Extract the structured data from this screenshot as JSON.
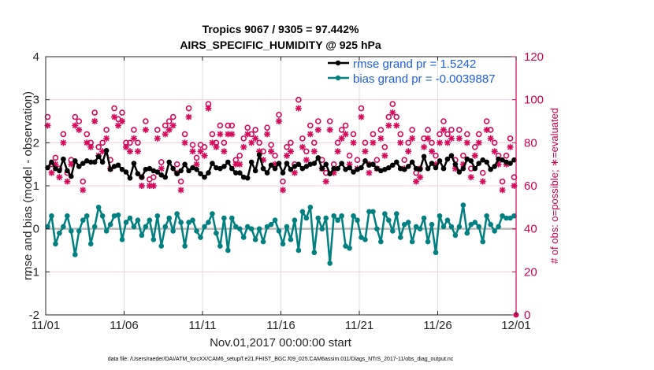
{
  "chart_data": {
    "type": "line",
    "title": [
      "Tropics 9067 / 9305 = 97.442%",
      "AIRS_SPECIFIC_HUMIDITY @ 925 hPa"
    ],
    "xlabel": "Nov.01,2017 00:00:00 start",
    "ylabel": "rmse and bias (model - observation)",
    "y2label": "# of obs: o=possible; ∗=evaluated",
    "footnote": "data file: /Users/raeder/DAI/ATM_forcXX/CAM6_setup/f.e21.FHIST_BGC.f09_025.CAM6assim.011/Diags_NTrS_2017-11/obs_diag_output.nc",
    "xlim": [
      0,
      30
    ],
    "ylim": [
      -2,
      4
    ],
    "y2lim": [
      0,
      120
    ],
    "xticks": [
      0,
      5,
      10,
      15,
      20,
      25,
      30
    ],
    "xtick_labels": [
      "11/01",
      "11/06",
      "11/11",
      "11/16",
      "11/21",
      "11/26",
      "12/01"
    ],
    "yticks": [
      -2,
      -1,
      0,
      1,
      2,
      3,
      4
    ],
    "ytick_labels": [
      "-2",
      "-1",
      "0",
      "1",
      "2",
      "3",
      "4"
    ],
    "y2ticks": [
      0,
      20,
      40,
      60,
      80,
      100,
      120
    ],
    "y2tick_labels": [
      "0",
      "20",
      "40",
      "60",
      "80",
      "100",
      "120"
    ],
    "grid": true,
    "legend_position": "top-right",
    "colors": {
      "rmse": "#000000",
      "bias": "#008080",
      "obs": "#d6095a",
      "zero_line": "#b8b8b8",
      "grid": "#f2cfe0",
      "legend_text": "#1f5fe0"
    },
    "samples_per_day": 4,
    "series": [
      {
        "name": "rmse grand pr = 1.5242",
        "axis": "left",
        "values": [
          1.42,
          1.55,
          1.4,
          1.35,
          1.62,
          1.35,
          1.22,
          1.58,
          1.45,
          1.52,
          1.58,
          1.55,
          1.55,
          1.68,
          1.55,
          1.82,
          1.38,
          1.45,
          1.48,
          1.38,
          1.32,
          1.18,
          1.52,
          1.28,
          1.2,
          1.38,
          1.4,
          1.35,
          1.32,
          1.25,
          1.2,
          1.55,
          1.4,
          1.28,
          1.35,
          1.5,
          1.35,
          1.42,
          1.38,
          1.28,
          1.2,
          1.3,
          1.52,
          1.42,
          1.4,
          1.45,
          1.55,
          1.4,
          1.3,
          1.3,
          1.2,
          1.18,
          1.55,
          1.35,
          1.72,
          1.4,
          1.3,
          1.48,
          1.4,
          1.52,
          1.3,
          1.52,
          1.38,
          1.45,
          1.5,
          1.4,
          1.45,
          1.5,
          1.52,
          1.65,
          1.4,
          1.5,
          1.28,
          1.4,
          1.4,
          1.52,
          1.38,
          1.42,
          1.32,
          1.38,
          1.42,
          1.58,
          1.48,
          1.5,
          1.4,
          1.35,
          1.38,
          1.42,
          1.48,
          1.55,
          1.4,
          1.38,
          1.45,
          1.55,
          1.4,
          1.38,
          1.68,
          1.4,
          1.52,
          1.42,
          1.58,
          1.4,
          1.62,
          1.7,
          1.5,
          1.32,
          1.4,
          1.62,
          1.58,
          1.4,
          1.52,
          1.6,
          1.55,
          1.38,
          1.45,
          1.62,
          1.6,
          1.55,
          1.52,
          1.6
        ]
      },
      {
        "name": "bias grand pr = -0.0039887",
        "axis": "left",
        "values": [
          0.05,
          0.3,
          -0.35,
          -0.1,
          0.05,
          0.3,
          -0.05,
          -0.6,
          -0.05,
          0.2,
          0.3,
          -0.35,
          0.05,
          0.5,
          0.3,
          -0.05,
          0.1,
          0.3,
          0.32,
          -0.25,
          0.15,
          0.25,
          0.05,
          0.2,
          -0.15,
          0.05,
          0.2,
          -0.25,
          0.3,
          -0.4,
          0.05,
          0.25,
          -0.05,
          0.35,
          0.15,
          -0.4,
          0.15,
          0.2,
          -0.05,
          -0.2,
          0.05,
          0.15,
          0.35,
          -0.1,
          -0.4,
          0.25,
          -0.5,
          0.25,
          0.05,
          0.0,
          -0.2,
          0.05,
          0.0,
          -0.25,
          0.0,
          -0.3,
          0.05,
          0.1,
          0.2,
          -0.05,
          -0.35,
          0.05,
          -0.25,
          0.2,
          -0.5,
          0.4,
          0.25,
          0.5,
          -0.55,
          0.25,
          0.0,
          0.25,
          -0.8,
          0.3,
          0.2,
          0.3,
          -0.4,
          -0.45,
          0.3,
          0.2,
          -0.2,
          -0.25,
          0.4,
          0.4,
          0.0,
          -0.3,
          0.35,
          0.2,
          -0.05,
          0.35,
          -0.2,
          0.1,
          0.15,
          -0.3,
          0.05,
          0.0,
          0.25,
          -0.3,
          0.1,
          -0.55,
          0.3,
          0.05,
          0.2,
          0.05,
          -0.15,
          0.05,
          0.55,
          -0.1,
          0.1,
          0.15,
          0.05,
          -0.3,
          0.3,
          0.1,
          -0.05,
          0.05,
          0.3,
          0.25,
          0.25,
          0.3
        ]
      },
      {
        "name": "possible obs",
        "axis": "right",
        "marker": "o",
        "values": [
          92,
          70,
          73,
          68,
          84,
          66,
          72,
          92,
          90,
          62,
          84,
          80,
          94,
          78,
          80,
          86,
          72,
          96,
          91,
          94,
          80,
          80,
          86,
          80,
          64,
          90,
          63,
          64,
          86,
          71,
          88,
          90,
          92,
          70,
          62,
          84,
          96,
          79,
          73,
          79,
          78,
          98,
          84,
          80,
          88,
          80,
          88,
          88,
          72,
          74,
          82,
          87,
          84,
          86,
          80,
          76,
          87,
          79,
          74,
          93,
          62,
          78,
          80,
          70,
          100,
          82,
          76,
          88,
          80,
          90,
          72,
          66,
          90,
          70,
          80,
          86,
          88,
          74,
          84,
          72,
          96,
          80,
          70,
          84,
          72,
          86,
          78,
          92,
          98,
          92,
          84,
          72,
          80,
          86,
          66,
          68,
          82,
          86,
          80,
          74,
          84,
          90,
          84,
          86,
          72,
          86,
          74,
          84,
          68,
          78,
          84,
          66,
          90,
          86,
          80,
          74,
          62,
          74,
          82,
          64
        ]
      },
      {
        "name": "evaluated obs",
        "axis": "right",
        "marker": "*",
        "values": [
          88,
          66,
          70,
          64,
          80,
          62,
          70,
          88,
          86,
          58,
          80,
          78,
          90,
          74,
          76,
          82,
          68,
          92,
          88,
          90,
          78,
          76,
          82,
          76,
          60,
          86,
          60,
          60,
          82,
          68,
          84,
          86,
          88,
          66,
          58,
          80,
          92,
          76,
          70,
          76,
          74,
          96,
          80,
          78,
          84,
          76,
          84,
          84,
          70,
          70,
          78,
          84,
          80,
          82,
          76,
          72,
          84,
          76,
          70,
          90,
          58,
          74,
          76,
          66,
          96,
          78,
          72,
          84,
          76,
          86,
          68,
          62,
          86,
          66,
          76,
          82,
          84,
          70,
          80,
          68,
          92,
          76,
          66,
          80,
          68,
          82,
          74,
          88,
          94,
          88,
          80,
          68,
          76,
          82,
          62,
          64,
          78,
          82,
          76,
          70,
          80,
          86,
          80,
          82,
          68,
          82,
          70,
          80,
          64,
          74,
          80,
          62,
          86,
          82,
          76,
          70,
          58,
          70,
          78,
          60
        ]
      }
    ],
    "legend": [
      "rmse grand pr = 1.5242",
      "bias grand pr = -0.0039887"
    ]
  }
}
